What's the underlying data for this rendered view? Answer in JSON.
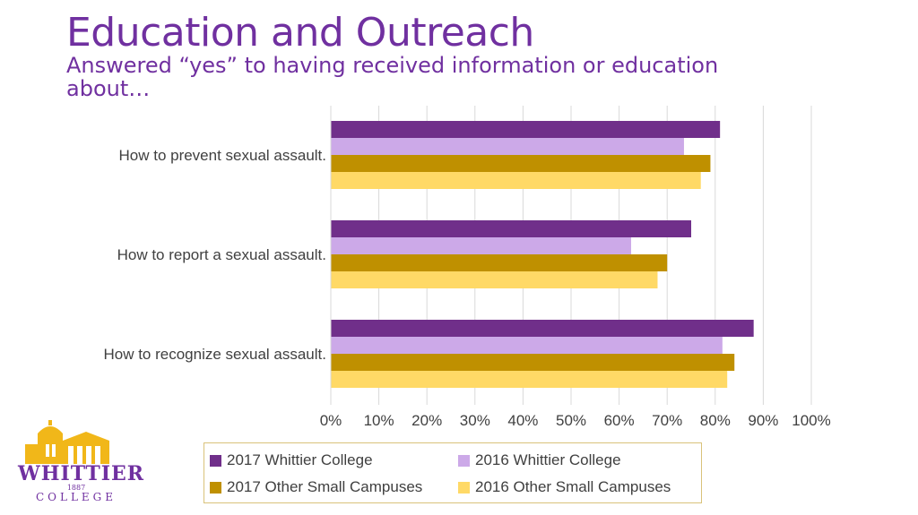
{
  "title": "Education and Outreach",
  "subtitle": "Answered “yes” to having received information or education about…",
  "chart_data": {
    "type": "bar",
    "orientation": "horizontal",
    "categories": [
      "How to prevent sexual assault.",
      "How to report a sexual assault.",
      "How to recognize sexual assault."
    ],
    "series": [
      {
        "name": "2017 Whittier College",
        "color": "#702f8a",
        "values": [
          0.81,
          0.75,
          0.88
        ]
      },
      {
        "name": "2016 Whittier College",
        "color": "#cca9e8",
        "values": [
          0.735,
          0.625,
          0.815
        ]
      },
      {
        "name": "2017 Other Small Campuses",
        "color": "#bf9000",
        "values": [
          0.79,
          0.7,
          0.84
        ]
      },
      {
        "name": "2016 Other Small Campuses",
        "color": "#ffd966",
        "values": [
          0.77,
          0.68,
          0.825
        ]
      }
    ],
    "xlim": [
      0,
      1
    ],
    "xticks": [
      "0%",
      "10%",
      "20%",
      "30%",
      "40%",
      "50%",
      "60%",
      "70%",
      "80%",
      "90%",
      "100%"
    ],
    "grid": true,
    "legend_placement": "bottom"
  },
  "logo": {
    "name": "WHITTIER",
    "year": "1887",
    "sub": "COLLEGE",
    "gold": "#f1b719",
    "purple": "#7030a0"
  }
}
